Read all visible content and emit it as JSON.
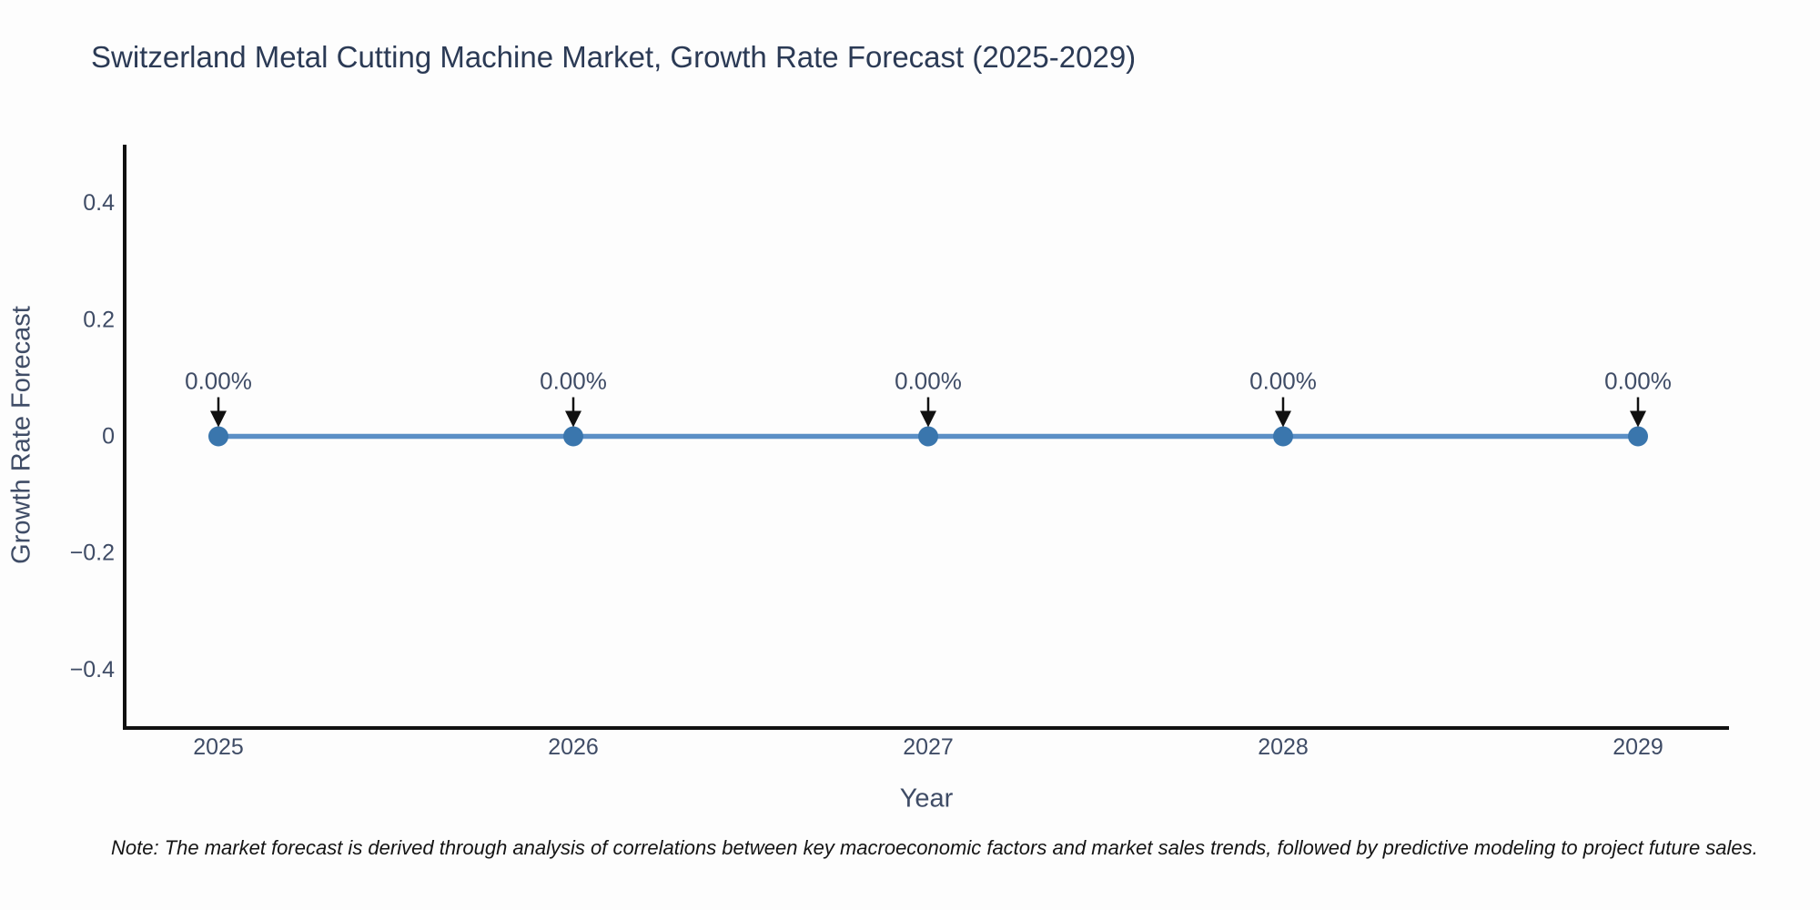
{
  "title": "Switzerland Metal Cutting Machine Market, Growth Rate Forecast (2025-2029)",
  "note": "Note: The market forecast is derived through analysis of correlations between key macroeconomic factors and market sales trends, followed by predictive modeling to project future sales.",
  "chart_data": {
    "type": "line",
    "title": "Switzerland Metal Cutting Machine Market, Growth Rate Forecast (2025-2029)",
    "xlabel": "Year",
    "ylabel": "Growth Rate Forecast",
    "categories": [
      "2025",
      "2026",
      "2027",
      "2028",
      "2029"
    ],
    "values": [
      0,
      0,
      0,
      0,
      0
    ],
    "point_labels": [
      "0.00%",
      "0.00%",
      "0.00%",
      "0.00%",
      "0.00%"
    ],
    "ylim": [
      -0.5,
      0.5
    ],
    "yticks": [
      0.4,
      0.2,
      0,
      -0.2,
      -0.4
    ],
    "ytick_labels": [
      "0.4",
      "0.2",
      "0",
      "−0.2",
      "−0.4"
    ],
    "grid": false,
    "legend": "none",
    "annotation_arrow": "down-arrow",
    "colors": {
      "line": "#5b8fc6",
      "marker": "#3a76ad",
      "axis": "#111111",
      "arrow": "#111111",
      "tick_text": "#3f4c66",
      "title_text": "#2b3a55"
    }
  }
}
